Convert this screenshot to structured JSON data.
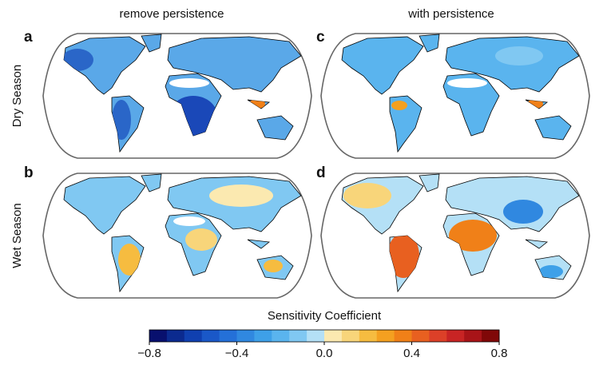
{
  "column_titles": [
    "remove persistence",
    "with persistence"
  ],
  "row_labels": [
    "Dry Season",
    "Wet Season"
  ],
  "panels": [
    "a",
    "c",
    "b",
    "d"
  ],
  "colorbar": {
    "label": "Sensitivity Coefficient",
    "range": [
      -0.8,
      0.8
    ],
    "ticks": [
      {
        "value": -0.8,
        "label": "−0.8"
      },
      {
        "value": -0.4,
        "label": "−0.4"
      },
      {
        "value": 0,
        "label": "0.0"
      },
      0.4,
      0.8
    ],
    "colors": [
      "#08106e",
      "#0b2a8f",
      "#1040b0",
      "#1a58c8",
      "#2470d8",
      "#3088e0",
      "#3ea0e8",
      "#5ab4ee",
      "#80c8f2",
      "#b4e0f6",
      "#fbe9b0",
      "#f8d57a",
      "#f6bc40",
      "#f4a020",
      "#f08018",
      "#e86020",
      "#dc4028",
      "#c82424",
      "#a81418",
      "#800808"
    ]
  }
}
